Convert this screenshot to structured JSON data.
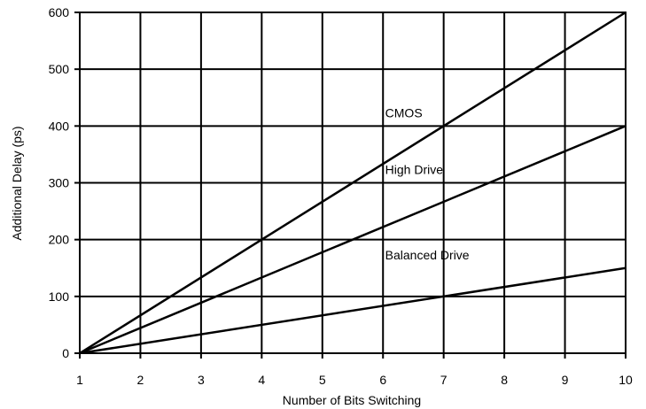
{
  "chart_data": {
    "type": "line",
    "xlabel": "Number of Bits Switching",
    "ylabel": "Additional Delay (ps)",
    "xlim": [
      1,
      10
    ],
    "ylim": [
      0,
      600
    ],
    "x_ticks": [
      1,
      2,
      3,
      4,
      5,
      6,
      7,
      8,
      9,
      10
    ],
    "y_ticks": [
      0,
      100,
      200,
      300,
      400,
      500,
      600
    ],
    "grid": true,
    "legend": "none",
    "line_color": "#000000",
    "series": [
      {
        "name": "CMOS",
        "x": [
          1,
          10
        ],
        "y": [
          0,
          600
        ],
        "label_at": [
          7,
          400
        ]
      },
      {
        "name": "High Drive",
        "x": [
          1,
          10
        ],
        "y": [
          0,
          400
        ],
        "label_at": [
          7,
          300
        ]
      },
      {
        "name": "Balanced Drive",
        "x": [
          1,
          10
        ],
        "y": [
          0,
          150
        ],
        "label_at": [
          7,
          150
        ]
      }
    ]
  }
}
